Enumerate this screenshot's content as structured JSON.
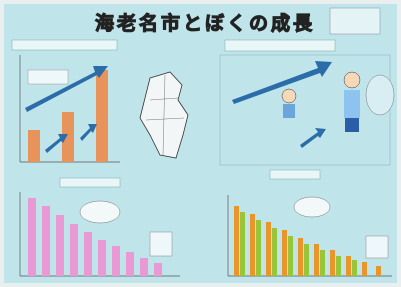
{
  "poster": {
    "title": "海老名市とぼくの成長"
  }
}
